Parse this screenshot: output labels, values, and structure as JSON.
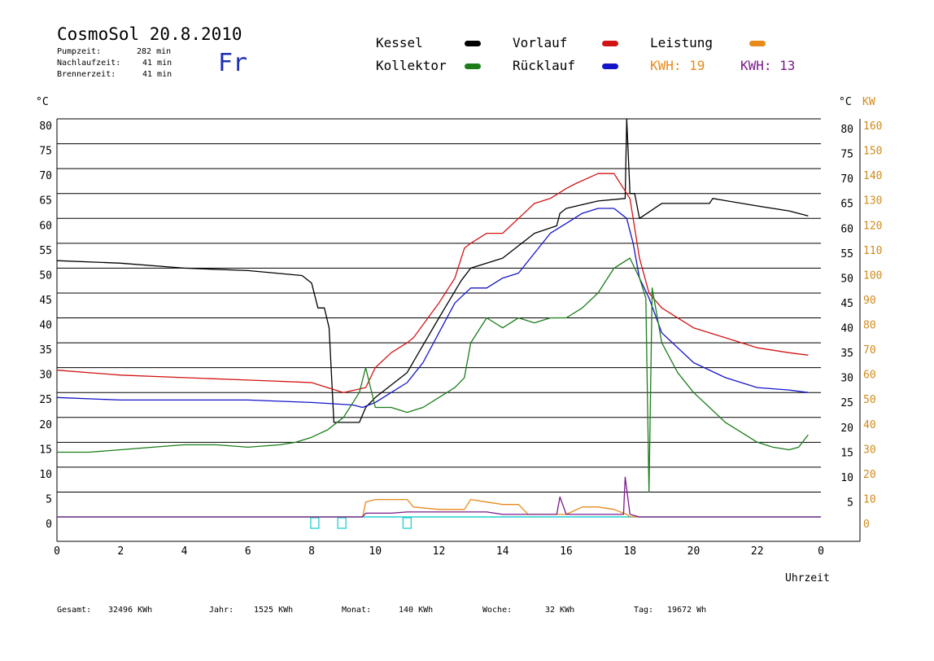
{
  "header": {
    "title": "CosmoSol 20.8.2010",
    "day": "Fr",
    "pumpzeit_label": "Pumpzeit:",
    "pumpzeit_value": "282 min",
    "nachlaufzeit_label": "Nachlaufzeit:",
    "nachlaufzeit_value": "41 min",
    "brennerzeit_label": "Brennerzeit:",
    "brennerzeit_value": "41 min"
  },
  "legend": {
    "kessel": "Kessel",
    "vorlauf": "Vorlauf",
    "leistung": "Leistung",
    "kollektor": "Kollektor",
    "ruecklauf": "Rücklauf",
    "kwh_orange": "KWH: 19",
    "kwh_purple": "KWH: 13"
  },
  "colors": {
    "kessel": "#000000",
    "vorlauf": "#d21414",
    "leistung": "#e88a1a",
    "kollektor": "#1a7d1a",
    "ruecklauf": "#1414c8",
    "power2": "#7a1a8a",
    "pump": "#20d0d0",
    "axis_kw": "#d08a1a"
  },
  "footer": {
    "gesamt_label": "Gesamt:",
    "gesamt_value": "32496 KWh",
    "jahr_label": "Jahr:",
    "jahr_value": "1525 KWh",
    "monat_label": "Monat:",
    "monat_value": "140 KWh",
    "woche_label": "Woche:",
    "woche_value": "32 KWh",
    "tag_label": "Tag:",
    "tag_value": "19672 Wh"
  },
  "chart_data": {
    "type": "line",
    "title": "CosmoSol 20.8.2010",
    "xlabel": "Uhrzeit",
    "ylabel_left": "°C",
    "ylabel_right_temp": "°C",
    "ylabel_right_power": "KW",
    "xlim": [
      0,
      24
    ],
    "ylim": [
      0,
      80
    ],
    "y2lim": [
      0,
      160
    ],
    "x_ticks": [
      "0",
      "2",
      "4",
      "6",
      "8",
      "10",
      "12",
      "14",
      "16",
      "18",
      "20",
      "22",
      "0"
    ],
    "y_ticks": [
      0,
      5,
      10,
      15,
      20,
      25,
      30,
      35,
      40,
      45,
      50,
      55,
      60,
      65,
      70,
      75,
      80
    ],
    "y2_ticks": [
      0,
      10,
      20,
      30,
      40,
      50,
      60,
      70,
      80,
      90,
      100,
      110,
      120,
      130,
      140,
      150,
      160
    ],
    "grid": true,
    "legend_position": "top",
    "series": [
      {
        "name": "Kessel",
        "color": "#000000",
        "x": [
          0,
          2,
          4,
          6,
          7.7,
          8,
          8.2,
          8.4,
          8.55,
          8.7,
          9.5,
          9.7,
          10,
          11,
          12,
          12.7,
          13,
          14,
          15,
          15.7,
          15.8,
          16,
          17,
          17.85,
          17.9,
          18,
          18.15,
          18.3,
          19,
          20,
          20.5,
          20.6,
          22,
          23,
          23.6
        ],
        "y": [
          51.5,
          51,
          50,
          49.5,
          48.5,
          47,
          42,
          42,
          38,
          19,
          19,
          22,
          24,
          29,
          40,
          47.5,
          50,
          52,
          57,
          58.5,
          61,
          62,
          63.5,
          64,
          80,
          65,
          65,
          60,
          63,
          63,
          63,
          64,
          62.5,
          61.5,
          60.5
        ]
      },
      {
        "name": "Vorlauf",
        "color": "#d21414",
        "x": [
          0,
          2,
          4,
          6,
          8,
          9,
          9.7,
          10,
          10.5,
          11,
          11.2,
          12,
          12.5,
          12.8,
          13,
          13.5,
          14,
          14.5,
          15,
          15.5,
          16,
          16.3,
          17,
          17.5,
          17.9,
          18,
          18.3,
          18.6,
          19,
          20,
          21,
          22,
          23,
          23.6
        ],
        "y": [
          29.5,
          28.5,
          28,
          27.5,
          27,
          25,
          26,
          30,
          33,
          35,
          36,
          43,
          48,
          54,
          55,
          57,
          57,
          60,
          63,
          64,
          66,
          67,
          69,
          69,
          65,
          64,
          52,
          45,
          42,
          38,
          36,
          34,
          33,
          32.5
        ]
      },
      {
        "name": "Rücklauf",
        "color": "#1414c8",
        "x": [
          0,
          2,
          4,
          6,
          8,
          9.3,
          9.6,
          10,
          10.5,
          11,
          11.5,
          12,
          12.5,
          13,
          13.5,
          14,
          14.5,
          15,
          15.5,
          16,
          16.5,
          17,
          17.5,
          17.9,
          18.1,
          18.3,
          18.6,
          19,
          20,
          21,
          22,
          23,
          23.6
        ],
        "y": [
          24,
          23.5,
          23.5,
          23.5,
          23,
          22.5,
          22,
          23,
          25,
          27,
          31,
          37,
          43,
          46,
          46,
          48,
          49,
          53,
          57,
          59,
          61,
          62,
          62,
          60,
          55,
          48,
          44,
          37,
          31,
          28,
          26,
          25.5,
          25
        ]
      },
      {
        "name": "Kollektor",
        "color": "#1a7d1a",
        "x": [
          0,
          1,
          2,
          3,
          4,
          5,
          6,
          7,
          7.5,
          8,
          8.5,
          9,
          9.5,
          9.7,
          10,
          10.5,
          11,
          11.5,
          12,
          12.5,
          12.8,
          13,
          13.5,
          14,
          14.5,
          15,
          15.5,
          16,
          16.5,
          17,
          17.5,
          18,
          18.3,
          18.5,
          18.6,
          18.7,
          19,
          19.5,
          20,
          20.5,
          21,
          21.5,
          22,
          22.5,
          23,
          23.3,
          23.6
        ],
        "y": [
          13,
          13,
          13.5,
          14,
          14.5,
          14.5,
          14,
          14.5,
          15,
          16,
          17.5,
          20,
          25,
          30,
          22,
          22,
          21,
          22,
          24,
          26,
          28,
          35,
          40,
          38,
          40,
          39,
          40,
          40,
          42,
          45,
          50,
          52,
          48,
          44,
          5,
          46,
          35,
          29,
          25,
          22,
          19,
          17,
          15,
          14,
          13.5,
          14,
          16.5
        ]
      },
      {
        "name": "Leistung",
        "color": "#e88a1a",
        "axis": "right",
        "x": [
          0,
          9.6,
          9.7,
          10,
          10.5,
          11,
          11.2,
          12,
          12.8,
          13,
          13.5,
          14,
          14.5,
          14.8,
          15,
          16,
          16.5,
          17,
          17.5,
          17.9,
          18,
          24
        ],
        "y": [
          0,
          0,
          6,
          7,
          7,
          7,
          4,
          3,
          3,
          7,
          6,
          5,
          5,
          1,
          1,
          1,
          4,
          4,
          3,
          1,
          0,
          0
        ]
      },
      {
        "name": "Leistung 2",
        "color": "#7a1a8a",
        "axis": "right",
        "x": [
          0,
          9.6,
          9.7,
          10,
          10.5,
          11,
          11.2,
          12,
          12.8,
          13,
          13.5,
          14,
          14.5,
          15,
          15.7,
          15.8,
          16,
          17,
          17.8,
          17.85,
          18,
          18.3,
          24
        ],
        "y": [
          0,
          0,
          1.5,
          1.5,
          1.5,
          2,
          2,
          2,
          2,
          2,
          2,
          1,
          1,
          1,
          1,
          8,
          1,
          1,
          1,
          16,
          1,
          0,
          0
        ]
      }
    ],
    "pump_markers_x": [
      8.1,
      8.95,
      11.0
    ]
  }
}
